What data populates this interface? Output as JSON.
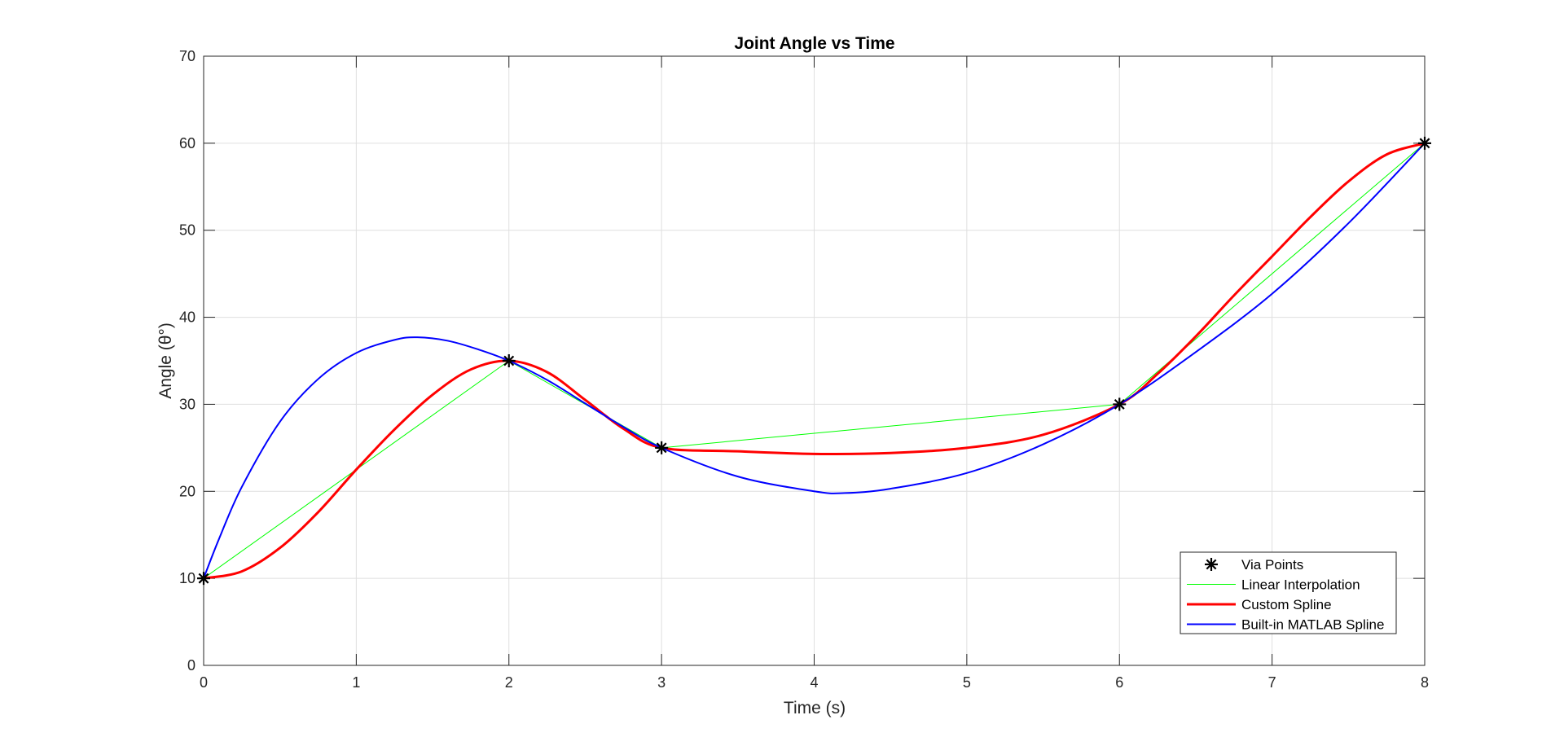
{
  "chart_data": {
    "type": "line",
    "title": "Joint Angle vs Time",
    "xlabel": "Time (s)",
    "ylabel": "Angle (θ°)",
    "xlim": [
      0,
      8
    ],
    "ylim": [
      0,
      70
    ],
    "x_tick_labels": [
      "0",
      "1",
      "2",
      "3",
      "4",
      "5",
      "6",
      "7",
      "8"
    ],
    "y_ticks": [
      0,
      10,
      20,
      30,
      40,
      50,
      60,
      70
    ],
    "y_tick_labels": [
      "0",
      "10",
      "20",
      "30",
      "40",
      "50",
      "60",
      "70"
    ],
    "grid": true,
    "legend_position": "bottom-right",
    "series": [
      {
        "name": "Via Points",
        "color": "#000000",
        "marker": "asterisk",
        "line": "none",
        "x": [
          0,
          2,
          3,
          6,
          8
        ],
        "y": [
          10,
          35,
          25,
          30,
          60
        ]
      },
      {
        "name": "Linear Interpolation",
        "color": "#00ff00",
        "line_width": 1,
        "x": [
          0,
          2,
          3,
          6,
          8
        ],
        "y": [
          10,
          35,
          25,
          30,
          60
        ]
      },
      {
        "name": "Custom Spline",
        "color": "#ff0000",
        "line_width": 3,
        "x": [
          0,
          0.25,
          0.5,
          0.75,
          1,
          1.25,
          1.5,
          1.75,
          2,
          2.25,
          2.5,
          2.75,
          3,
          3.5,
          4,
          4.5,
          5,
          5.5,
          6,
          6.25,
          6.5,
          6.75,
          7,
          7.25,
          7.5,
          7.75,
          8
        ],
        "y": [
          10,
          10.8,
          13.5,
          17.6,
          22.5,
          27.1,
          31.1,
          34.0,
          35,
          33.7,
          30.5,
          27.2,
          25,
          24.6,
          24.3,
          24.4,
          25.0,
          26.5,
          30,
          33.5,
          37.8,
          42.5,
          47.0,
          51.5,
          55.6,
          58.7,
          60
        ]
      },
      {
        "name": "Built-in MATLAB Spline",
        "color": "#0000ff",
        "line_width": 2,
        "x": [
          0,
          0.1,
          0.25,
          0.5,
          0.75,
          1,
          1.25,
          1.4,
          1.6,
          1.8,
          2,
          2.25,
          2.5,
          2.75,
          3,
          3.5,
          4,
          4.2,
          4.5,
          5,
          5.5,
          6,
          6.5,
          7,
          7.5,
          8
        ],
        "y": [
          10,
          14.5,
          20.5,
          28.0,
          32.9,
          35.9,
          37.4,
          37.7,
          37.3,
          36.3,
          35,
          32.8,
          30.1,
          27.4,
          25,
          21.7,
          20.0,
          19.8,
          20.3,
          22.1,
          25.4,
          30,
          36.0,
          42.7,
          50.8,
          60
        ]
      }
    ]
  }
}
